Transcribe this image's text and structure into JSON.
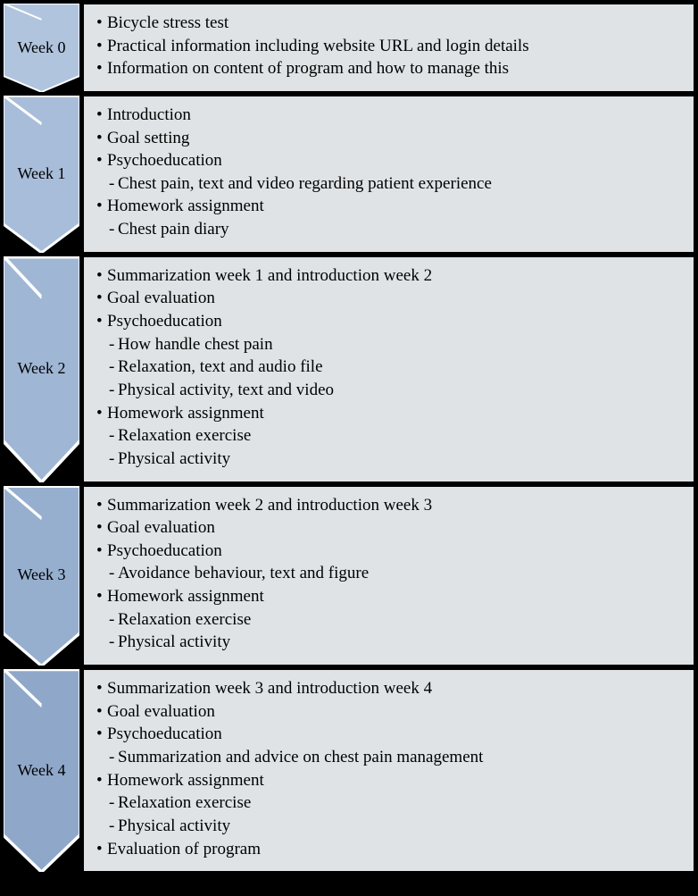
{
  "diagram": {
    "type": "flowchart",
    "arrow_colors": [
      "#b0c4de",
      "#a8bdd9",
      "#9fb6d4",
      "#97afcf",
      "#8fa8ca"
    ],
    "arrow_stroke": "#ffffff",
    "content_bg": "#dfe3e6",
    "content_border": "#000000",
    "page_bg": "#000000",
    "font_family": "Times New Roman",
    "label_fontsize": 18,
    "item_fontsize": 19
  },
  "weeks": [
    {
      "label": "Week 0",
      "items": [
        {
          "t": "top",
          "text": "Bicycle stress test"
        },
        {
          "t": "top",
          "text": "Practical information including website URL and login details"
        },
        {
          "t": "top",
          "text": "Information on content of program and how to manage this"
        }
      ]
    },
    {
      "label": "Week 1",
      "items": [
        {
          "t": "top",
          "text": "Introduction"
        },
        {
          "t": "top",
          "text": "Goal setting"
        },
        {
          "t": "top",
          "text": "Psychoeducation"
        },
        {
          "t": "sub",
          "text": "Chest pain, text and video regarding patient experience"
        },
        {
          "t": "top",
          "text": "Homework assignment"
        },
        {
          "t": "sub",
          "text": "Chest pain diary"
        }
      ]
    },
    {
      "label": "Week 2",
      "items": [
        {
          "t": "top",
          "text": "Summarization week 1 and introduction week 2"
        },
        {
          "t": "top",
          "text": "Goal evaluation"
        },
        {
          "t": "top",
          "text": "Psychoeducation"
        },
        {
          "t": "sub",
          "text": "How handle chest pain"
        },
        {
          "t": "sub",
          "text": "Relaxation, text and audio file"
        },
        {
          "t": "sub",
          "text": "Physical activity, text and video"
        },
        {
          "t": "top",
          "text": "Homework assignment"
        },
        {
          "t": "sub",
          "text": "Relaxation exercise"
        },
        {
          "t": "sub",
          "text": "Physical activity"
        }
      ]
    },
    {
      "label": "Week 3",
      "items": [
        {
          "t": "top",
          "text": "Summarization week 2 and introduction week 3"
        },
        {
          "t": "top",
          "text": "Goal evaluation"
        },
        {
          "t": "top",
          "text": "Psychoeducation"
        },
        {
          "t": "sub",
          "text": "Avoidance behaviour, text and figure"
        },
        {
          "t": "top",
          "text": "Homework assignment"
        },
        {
          "t": "sub",
          "text": "Relaxation exercise"
        },
        {
          "t": "sub",
          "text": "Physical activity"
        }
      ]
    },
    {
      "label": "Week 4",
      "items": [
        {
          "t": "top",
          "text": "Summarization week 3 and introduction week 4"
        },
        {
          "t": "top",
          "text": "Goal evaluation"
        },
        {
          "t": "top",
          "text": "Psychoeducation"
        },
        {
          "t": "sub",
          "text": "Summarization and advice on chest pain management"
        },
        {
          "t": "top",
          "text": "Homework assignment"
        },
        {
          "t": "sub",
          "text": "Relaxation exercise"
        },
        {
          "t": "sub",
          "text": "Physical activity"
        },
        {
          "t": "top",
          "text": "Evaluation of program"
        }
      ]
    }
  ]
}
